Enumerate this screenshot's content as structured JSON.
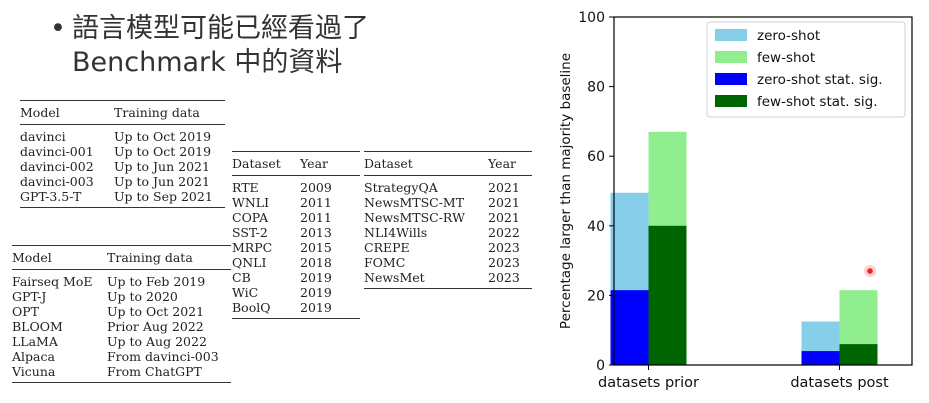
{
  "bullet": {
    "dot": "•",
    "line1": "語言模型可能已經看過了",
    "line2": "Benchmark 中的資料"
  },
  "table_models_openai": {
    "headers": [
      "Model",
      "Training data"
    ],
    "rows": [
      [
        "davinci",
        "Up to Oct 2019"
      ],
      [
        "davinci-001",
        "Up to Oct 2019"
      ],
      [
        "davinci-002",
        "Up to Jun 2021"
      ],
      [
        "davinci-003",
        "Up to Jun 2021"
      ],
      [
        "GPT-3.5-T",
        "Up to Sep 2021"
      ]
    ]
  },
  "table_models_open": {
    "headers": [
      "Model",
      "Training data"
    ],
    "rows": [
      [
        "Fairseq MoE",
        "Up to Feb 2019"
      ],
      [
        "GPT-J",
        "Up to 2020"
      ],
      [
        "OPT",
        "Up to Oct 2021"
      ],
      [
        "BLOOM",
        "Prior Aug 2022"
      ],
      [
        "LLaMA",
        "Up to Aug 2022"
      ],
      [
        "Alpaca",
        "From davinci-003"
      ],
      [
        "Vicuna",
        "From ChatGPT"
      ]
    ]
  },
  "table_datasets_prior": {
    "headers": [
      "Dataset",
      "Year"
    ],
    "rows": [
      [
        "RTE",
        "2009"
      ],
      [
        "WNLI",
        "2011"
      ],
      [
        "COPA",
        "2011"
      ],
      [
        "SST-2",
        "2013"
      ],
      [
        "MRPC",
        "2015"
      ],
      [
        "QNLI",
        "2018"
      ],
      [
        "CB",
        "2019"
      ],
      [
        "WiC",
        "2019"
      ],
      [
        "BoolQ",
        "2019"
      ]
    ]
  },
  "table_datasets_post": {
    "headers": [
      "Dataset",
      "Year"
    ],
    "rows": [
      [
        "StrategyQA",
        "2021"
      ],
      [
        "NewsMTSC-MT",
        "2021"
      ],
      [
        "NewsMTSC-RW",
        "2021"
      ],
      [
        "NLI4Wills",
        "2022"
      ],
      [
        "CREPE",
        "2023"
      ],
      [
        "FOMC",
        "2023"
      ],
      [
        "NewsMet",
        "2023"
      ]
    ]
  },
  "chart_data": {
    "type": "bar",
    "categories": [
      "datasets prior",
      "datasets post"
    ],
    "ylabel": "Percentage larger than majority baseline",
    "ylim": [
      0,
      100
    ],
    "yticks": [
      0,
      20,
      40,
      60,
      80,
      100
    ],
    "grid": false,
    "legend_position": "top-right",
    "groups": [
      "zero-shot",
      "few-shot"
    ],
    "series": [
      {
        "name": "zero-shot",
        "values": [
          49.5,
          12.5
        ],
        "color": "#87ceeb"
      },
      {
        "name": "few-shot",
        "values": [
          67,
          21.5
        ],
        "color": "#90ee90"
      },
      {
        "name": "zero-shot stat. sig.",
        "values": [
          21.5,
          4
        ],
        "color": "#0000ff"
      },
      {
        "name": "few-shot stat. sig.",
        "values": [
          40,
          6
        ],
        "color": "#006400"
      }
    ]
  }
}
